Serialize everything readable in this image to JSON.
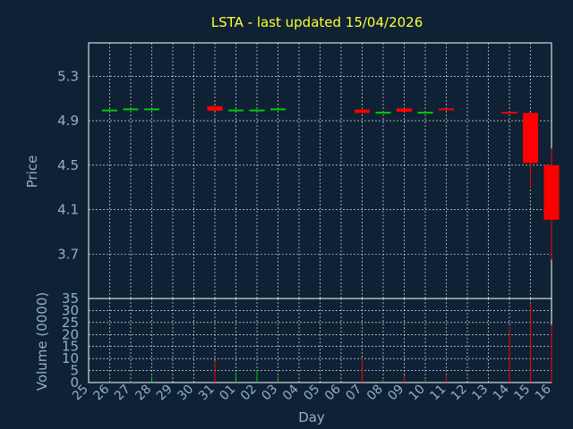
{
  "chart_data": {
    "type": "candlestick",
    "title": "LSTA - last updated 15/04/2026",
    "xlabel": "Day",
    "price_ylabel": "Price",
    "volume_ylabel": "Volume (0000)",
    "x_ticks": [
      "25",
      "26",
      "27",
      "28",
      "29",
      "30",
      "31",
      "01",
      "02",
      "03",
      "04",
      "05",
      "06",
      "07",
      "08",
      "09",
      "10",
      "11",
      "12",
      "13",
      "14",
      "15",
      "16"
    ],
    "price_ticks": [
      "5.3",
      "4.9",
      "4.5",
      "4.1",
      "3.7"
    ],
    "price_ylim": [
      3.3,
      5.6
    ],
    "volume_ticks": [
      "35",
      "30",
      "25",
      "20",
      "15",
      "10",
      "5",
      "0"
    ],
    "volume_ylim": [
      0,
      35
    ],
    "grid": true,
    "colors": {
      "background": "#0f2235",
      "grid": "#ffffff",
      "up": "#00cc00",
      "down": "#ff0000",
      "title": "#ffff33",
      "axis_text": "#8fb0cc"
    },
    "candles": [
      {
        "day": "25",
        "open": 4.99,
        "close": 5.0,
        "high": 5.0,
        "low": 4.99
      },
      {
        "day": "26",
        "open": 5.0,
        "close": 5.01,
        "high": 5.01,
        "low": 5.0
      },
      {
        "day": "27",
        "open": 5.0,
        "close": 5.01,
        "high": 5.01,
        "low": 5.0
      },
      {
        "day": "30",
        "open": 5.03,
        "close": 4.99,
        "high": 5.03,
        "low": 4.99
      },
      {
        "day": "31",
        "open": 4.99,
        "close": 5.0,
        "high": 5.0,
        "low": 4.99
      },
      {
        "day": "01",
        "open": 4.99,
        "close": 5.0,
        "high": 5.0,
        "low": 4.99
      },
      {
        "day": "02",
        "open": 5.0,
        "close": 5.01,
        "high": 5.01,
        "low": 5.0
      },
      {
        "day": "06",
        "open": 5.0,
        "close": 4.97,
        "high": 5.01,
        "low": 4.97
      },
      {
        "day": "07",
        "open": 4.97,
        "close": 4.98,
        "high": 4.98,
        "low": 4.97
      },
      {
        "day": "08",
        "open": 5.01,
        "close": 4.98,
        "high": 5.01,
        "low": 4.98
      },
      {
        "day": "09",
        "open": 4.97,
        "close": 4.98,
        "high": 4.98,
        "low": 4.97
      },
      {
        "day": "10",
        "open": 5.01,
        "close": 5.0,
        "high": 5.01,
        "low": 5.0
      },
      {
        "day": "13",
        "open": 4.98,
        "close": 4.97,
        "high": 4.98,
        "low": 4.97
      },
      {
        "day": "14",
        "open": 4.97,
        "close": 4.52,
        "high": 4.97,
        "low": 4.3
      },
      {
        "day": "15",
        "open": 4.5,
        "close": 4.01,
        "high": 4.65,
        "low": 3.65
      }
    ],
    "volume": [
      {
        "day": "25",
        "value": 0.3,
        "dir": "up"
      },
      {
        "day": "26",
        "value": 0.5,
        "dir": "up"
      },
      {
        "day": "27",
        "value": 2.5,
        "dir": "up"
      },
      {
        "day": "30",
        "value": 9,
        "dir": "down"
      },
      {
        "day": "31",
        "value": 4,
        "dir": "up"
      },
      {
        "day": "01",
        "value": 5,
        "dir": "up"
      },
      {
        "day": "02",
        "value": 2.5,
        "dir": "up"
      },
      {
        "day": "06",
        "value": 10,
        "dir": "down"
      },
      {
        "day": "07",
        "value": 1,
        "dir": "up"
      },
      {
        "day": "08",
        "value": 3,
        "dir": "down"
      },
      {
        "day": "09",
        "value": 1,
        "dir": "up"
      },
      {
        "day": "10",
        "value": 2.5,
        "dir": "down"
      },
      {
        "day": "13",
        "value": 23,
        "dir": "down"
      },
      {
        "day": "14",
        "value": 33,
        "dir": "down"
      },
      {
        "day": "15",
        "value": 24,
        "dir": "down"
      }
    ]
  }
}
